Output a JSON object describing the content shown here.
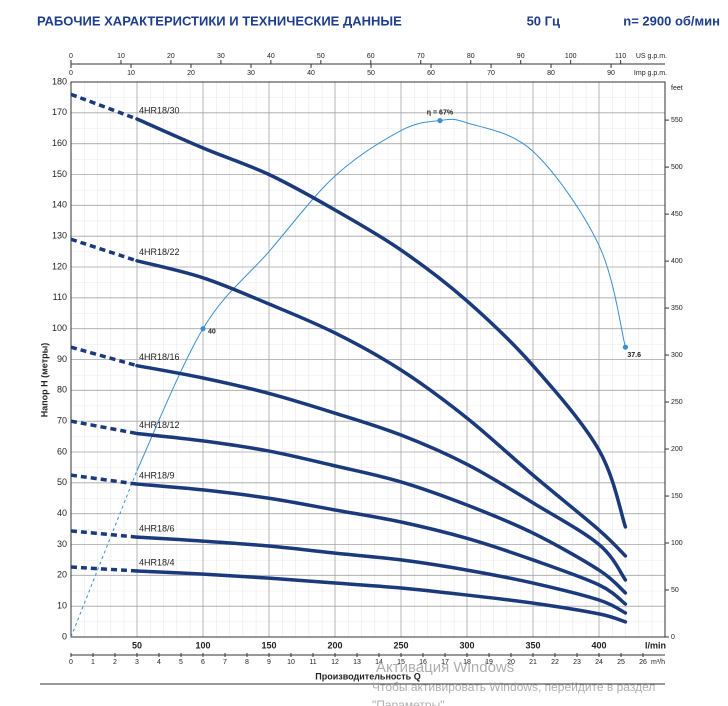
{
  "chart_data": {
    "type": "line",
    "title": "РАБОЧИЕ ХАРАКТЕРИСТИКИ И ТЕХНИЧЕСКИЕ ДАННЫЕ",
    "frequency": "50 Гц",
    "speed": "n= 2900 об/мин",
    "x_label": "Производительность Q",
    "y_label": "Напор Н (метры)",
    "x_unit": "l/min",
    "x": [
      0,
      50,
      100,
      150,
      200,
      250,
      300,
      350,
      400,
      420
    ],
    "xlim": [
      0,
      450
    ],
    "xticks": [
      50,
      100,
      150,
      200,
      250,
      300,
      350,
      400
    ],
    "ylim": [
      0,
      180
    ],
    "yticks": [
      0,
      10,
      20,
      30,
      40,
      50,
      60,
      70,
      80,
      90,
      100,
      110,
      120,
      130,
      140,
      150,
      160,
      170,
      180
    ],
    "y2_label": "feet",
    "y2lim": [
      0,
      590.55
    ],
    "y2ticks": [
      0,
      50,
      100,
      150,
      200,
      250,
      300,
      350,
      400,
      450,
      500,
      550
    ],
    "y3lim": [
      0,
      72
    ],
    "x2_label": "US g.p.m.",
    "x2lim": [
      0,
      118.88
    ],
    "x2ticks": [
      0,
      10,
      20,
      30,
      40,
      50,
      60,
      70,
      80,
      90,
      100,
      110
    ],
    "x3_label": "Imp g.p.m.",
    "x3lim": [
      0,
      98.99
    ],
    "x3ticks": [
      0,
      10,
      20,
      30,
      40,
      50,
      60,
      70,
      80,
      90
    ],
    "x4_label": "m³/h",
    "x4lim": [
      0,
      27
    ],
    "x4ticks": [
      0,
      1,
      2,
      3,
      4,
      5,
      6,
      7,
      8,
      9,
      10,
      11,
      12,
      13,
      14,
      15,
      16,
      17,
      18,
      19,
      20,
      21,
      22,
      23,
      24,
      25,
      26
    ],
    "grid": true,
    "series": [
      {
        "name": "4HR18/30",
        "color": "#1b3a7c",
        "values": [
          176,
          168,
          158.6,
          150,
          138.5,
          125.5,
          109,
          88,
          60.6,
          35.7
        ]
      },
      {
        "name": "4HR18/22",
        "color": "#1b3a7c",
        "values": [
          129,
          122,
          116.5,
          108,
          98.6,
          86.6,
          71,
          52.5,
          34.7,
          26.3
        ]
      },
      {
        "name": "4HR18/16",
        "color": "#1b3a7c",
        "values": [
          94,
          88,
          84,
          79,
          72.6,
          65.5,
          56,
          43.5,
          30,
          18.5
        ]
      },
      {
        "name": "4HR18/12",
        "color": "#1b3a7c",
        "values": [
          70,
          66,
          63.6,
          60.3,
          55.5,
          50.3,
          42.8,
          33.7,
          21.7,
          14.3
        ]
      },
      {
        "name": "4HR18/9",
        "color": "#1b3a7c",
        "values": [
          52.5,
          49.6,
          47.7,
          45,
          41.2,
          37.3,
          32,
          25,
          16.9,
          10.7
        ]
      },
      {
        "name": "4HR18/6",
        "color": "#1b3a7c",
        "values": [
          34.4,
          32.4,
          31.1,
          29.5,
          27.2,
          25,
          21.7,
          17.5,
          12,
          7.8
        ]
      },
      {
        "name": "4HR18/4",
        "color": "#1b3a7c",
        "values": [
          22.7,
          21.4,
          20.4,
          19.1,
          17.5,
          15.9,
          13.6,
          11,
          7.5,
          4.9
        ]
      }
    ],
    "efficiency": {
      "color": "#3b8fd1",
      "axis": "y3",
      "x": [
        0,
        50,
        100,
        150,
        200,
        250,
        279.5,
        300,
        350,
        400,
        420
      ],
      "values": [
        0,
        21.6,
        40,
        50,
        59.8,
        65.7,
        67,
        66.7,
        63,
        50.8,
        37.6
      ]
    },
    "annotations": [
      {
        "x": 100,
        "y": 40,
        "label": "40"
      },
      {
        "x": 279.5,
        "y": 67,
        "label": "η = 67%"
      },
      {
        "x": 420,
        "y": 37.6,
        "label": "37.6"
      }
    ]
  },
  "watermark": {
    "lines": [
      "Активация Windows",
      "Чтобы активировать Windows, перейдите в раздел",
      "\"Параметры\"."
    ]
  }
}
